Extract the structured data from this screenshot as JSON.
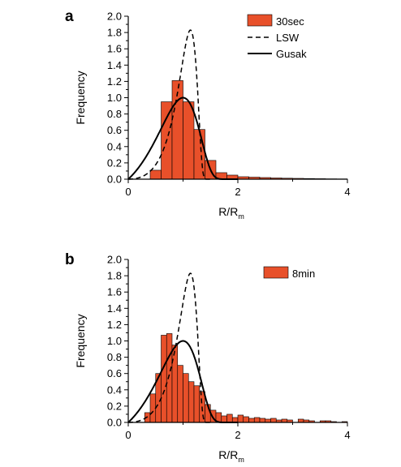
{
  "chart_data": [
    {
      "panel_label": "a",
      "type": "bar",
      "xlabel": "R/R",
      "xlabel_sub": "m",
      "ylabel": "Frequency",
      "xlim": [
        0,
        4
      ],
      "ylim": [
        0,
        2.0
      ],
      "x_ticks": [
        "0",
        "2",
        "4"
      ],
      "y_ticks": [
        "0.0",
        "0.2",
        "0.4",
        "0.6",
        "0.8",
        "1.0",
        "1.2",
        "1.4",
        "1.6",
        "1.8",
        "2.0"
      ],
      "colors": {
        "bars": "#e8502a",
        "bar_edge": "#000000",
        "lines": "#000000"
      },
      "legend_position": "top-right",
      "histogram": {
        "name": "30sec",
        "bin_width": 0.2,
        "bin_starts": [
          0.4,
          0.6,
          0.8,
          1.0,
          1.2,
          1.4,
          1.6,
          1.8,
          2.0,
          2.2,
          2.4,
          2.6,
          2.8,
          3.0,
          3.2,
          3.4,
          3.6,
          3.8
        ],
        "values": [
          0.11,
          0.95,
          1.21,
          0.95,
          0.61,
          0.23,
          0.08,
          0.05,
          0.03,
          0.025,
          0.02,
          0.015,
          0.012,
          0.01,
          0.008,
          0.006,
          0.004,
          0.003
        ]
      },
      "lines": [
        {
          "name": "LSW",
          "style": "dashed"
        },
        {
          "name": "Gusak",
          "style": "solid"
        }
      ]
    },
    {
      "panel_label": "b",
      "type": "bar",
      "xlabel": "R/R",
      "xlabel_sub": "m",
      "ylabel": "Frequency",
      "xlim": [
        0,
        4
      ],
      "ylim": [
        0,
        2.0
      ],
      "x_ticks": [
        "0",
        "2",
        "4"
      ],
      "y_ticks": [
        "0.0",
        "0.2",
        "0.4",
        "0.6",
        "0.8",
        "1.0",
        "1.2",
        "1.4",
        "1.6",
        "1.8",
        "2.0"
      ],
      "colors": {
        "bars": "#e8502a",
        "bar_edge": "#000000",
        "lines": "#000000"
      },
      "legend_position": "top-right",
      "histogram": {
        "name": "8min",
        "bin_width": 0.1,
        "bin_starts": [
          0.3,
          0.4,
          0.5,
          0.6,
          0.7,
          0.8,
          0.9,
          1.0,
          1.1,
          1.2,
          1.3,
          1.4,
          1.5,
          1.6,
          1.7,
          1.8,
          1.9,
          2.0,
          2.1,
          2.2,
          2.3,
          2.4,
          2.5,
          2.6,
          2.7,
          2.8,
          2.9,
          3.0,
          3.1,
          3.2,
          3.3,
          3.4,
          3.5,
          3.6,
          3.7,
          3.8,
          3.9
        ],
        "values": [
          0.12,
          0.35,
          0.6,
          1.07,
          1.09,
          0.95,
          0.7,
          0.6,
          0.5,
          0.45,
          0.38,
          0.22,
          0.15,
          0.12,
          0.08,
          0.1,
          0.06,
          0.09,
          0.07,
          0.05,
          0.06,
          0.05,
          0.04,
          0.05,
          0.03,
          0.04,
          0.03,
          0.0,
          0.04,
          0.03,
          0.02,
          0.0,
          0.02,
          0.02,
          0.01,
          0.0,
          0.01
        ]
      },
      "lines": [
        {
          "name": "LSW",
          "style": "dashed"
        },
        {
          "name": "Gusak",
          "style": "solid"
        }
      ]
    }
  ]
}
